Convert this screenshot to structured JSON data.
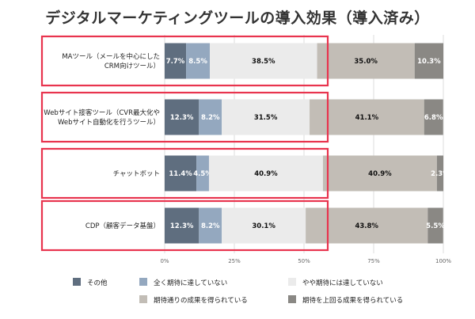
{
  "chart_data": {
    "type": "bar",
    "orientation": "horizontal",
    "stacked": true,
    "title": "デジタルマーケティングツールの導入効果（導入済み）",
    "categories": [
      [
        "MAツール（メールを中心にした",
        "CRM向けツール）"
      ],
      [
        "Webサイト接客ツール（CVR最大化や",
        "Webサイト自動化を行うツール）"
      ],
      [
        "チャットボット"
      ],
      [
        "CDP（顧客データ基盤）"
      ]
    ],
    "series": [
      {
        "name": "その他",
        "color": "#5f6e7f",
        "label_color": "#ffffff",
        "values": [
          7.7,
          12.3,
          11.4,
          12.3
        ]
      },
      {
        "name": "全く期待に達していない",
        "color": "#94a8bf",
        "label_color": "#ffffff",
        "values": [
          8.5,
          8.2,
          4.5,
          8.2
        ]
      },
      {
        "name": "やや期待には達していない",
        "color": "#ebebeb",
        "label_color": "#111111",
        "values": [
          38.5,
          31.5,
          40.9,
          30.1
        ]
      },
      {
        "name": "期待通りの成果を得られている",
        "color": "#c2bdb6",
        "label_color": "#111111",
        "values": [
          35.0,
          41.1,
          40.9,
          43.8
        ]
      },
      {
        "name": "期待を上回る成果を得られている",
        "color": "#8a8884",
        "label_color": "#ffffff",
        "values": [
          10.3,
          6.8,
          2.3,
          5.5
        ]
      }
    ],
    "x_ticks": [
      "0%",
      "25%",
      "50%",
      "75%",
      "100%"
    ],
    "xlim": [
      0,
      100
    ],
    "value_labels": [
      [
        "7.7%",
        "8.5%",
        "38.5%",
        "35.0%",
        "10.3%"
      ],
      [
        "12.3%",
        "8.2%",
        "31.5%",
        "41.1%",
        "6.8%"
      ],
      [
        "11.4%",
        "4.5%",
        "40.9%",
        "40.9%",
        "2.3%"
      ],
      [
        "12.3%",
        "8.2%",
        "30.1%",
        "43.8%",
        "5.5%"
      ]
    ],
    "highlight_color": "#e8344e",
    "legend_position": "bottom",
    "grid": true
  }
}
